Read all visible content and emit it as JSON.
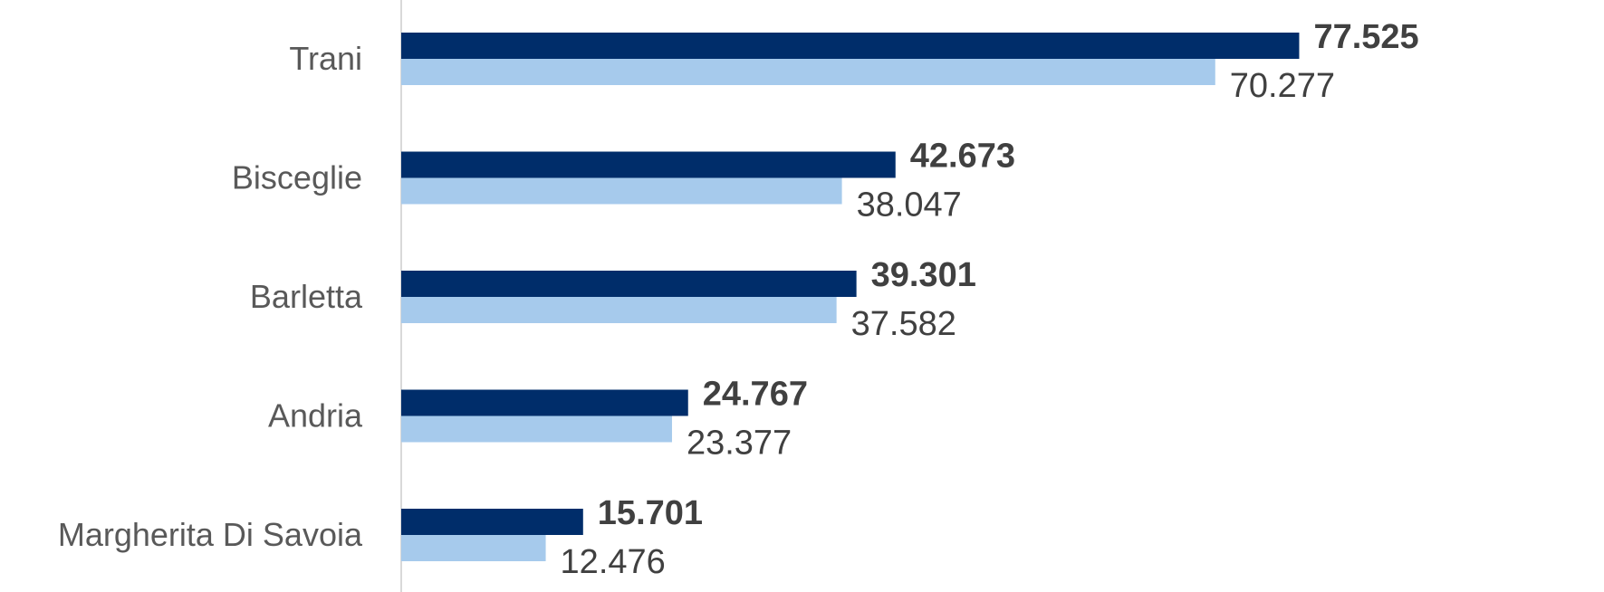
{
  "chart_data": {
    "type": "bar",
    "orientation": "horizontal",
    "categories": [
      "Trani",
      "Bisceglie",
      "Barletta",
      "Andria",
      "Margherita Di Savoia"
    ],
    "series": [
      {
        "values": [
          77525,
          42673,
          39301,
          24767,
          15701
        ],
        "labels": [
          "77.525",
          "42.673",
          "39.301",
          "24.767",
          "15.701"
        ],
        "color": "#002D6A",
        "label_weight": "bold"
      },
      {
        "values": [
          70277,
          38047,
          37582,
          23377,
          12476
        ],
        "labels": [
          "70.277",
          "38.047",
          "37.582",
          "23.377",
          "12.476"
        ],
        "color": "#A6CAEC",
        "label_weight": "normal"
      }
    ],
    "xlim": [
      0,
      90000
    ],
    "grid": false,
    "legend": "none",
    "axis_color": "#D9D9D9"
  }
}
